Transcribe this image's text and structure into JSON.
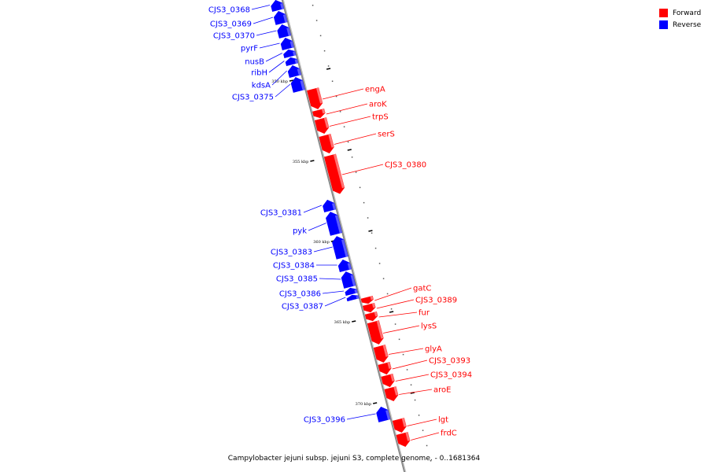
{
  "title": "Campylobacter jejuni subsp. jejuni S3, complete genome. - 0..1681364",
  "legend": [
    {
      "label": "Forward",
      "color": "#ff0000"
    },
    {
      "label": "Reverse",
      "color": "#0000ff"
    }
  ],
  "colors": {
    "forward": "#ff0000",
    "reverse": "#0000ff",
    "backbone": "#7f7f7f"
  },
  "ticks": [
    {
      "label": "350 kbp"
    },
    {
      "label": "355 kbp"
    },
    {
      "label": "360 kbp"
    },
    {
      "label": "365 kbp"
    },
    {
      "label": "370 kbp"
    }
  ],
  "genes": [
    {
      "name": "CJS3_0368",
      "strand": "reverse"
    },
    {
      "name": "CJS3_0369",
      "strand": "reverse"
    },
    {
      "name": "CJS3_0370",
      "strand": "reverse"
    },
    {
      "name": "pyrF",
      "strand": "reverse"
    },
    {
      "name": "nusB",
      "strand": "reverse"
    },
    {
      "name": "ribH",
      "strand": "reverse"
    },
    {
      "name": "kdsA",
      "strand": "reverse"
    },
    {
      "name": "CJS3_0375",
      "strand": "reverse"
    },
    {
      "name": "engA",
      "strand": "forward"
    },
    {
      "name": "aroK",
      "strand": "forward"
    },
    {
      "name": "trpS",
      "strand": "forward"
    },
    {
      "name": "serS",
      "strand": "forward"
    },
    {
      "name": "CJS3_0380",
      "strand": "forward"
    },
    {
      "name": "CJS3_0381",
      "strand": "reverse"
    },
    {
      "name": "pyk",
      "strand": "reverse"
    },
    {
      "name": "CJS3_0383",
      "strand": "reverse"
    },
    {
      "name": "CJS3_0384",
      "strand": "reverse"
    },
    {
      "name": "CJS3_0385",
      "strand": "reverse"
    },
    {
      "name": "CJS3_0386",
      "strand": "reverse"
    },
    {
      "name": "CJS3_0387",
      "strand": "reverse"
    },
    {
      "name": "gatC",
      "strand": "forward"
    },
    {
      "name": "CJS3_0389",
      "strand": "forward"
    },
    {
      "name": "fur",
      "strand": "forward"
    },
    {
      "name": "lysS",
      "strand": "forward"
    },
    {
      "name": "glyA",
      "strand": "forward"
    },
    {
      "name": "CJS3_0393",
      "strand": "forward"
    },
    {
      "name": "CJS3_0394",
      "strand": "forward"
    },
    {
      "name": "aroE",
      "strand": "forward"
    },
    {
      "name": "CJS3_0396",
      "strand": "reverse"
    },
    {
      "name": "lgt",
      "strand": "forward"
    },
    {
      "name": "frdC",
      "strand": "forward"
    }
  ]
}
